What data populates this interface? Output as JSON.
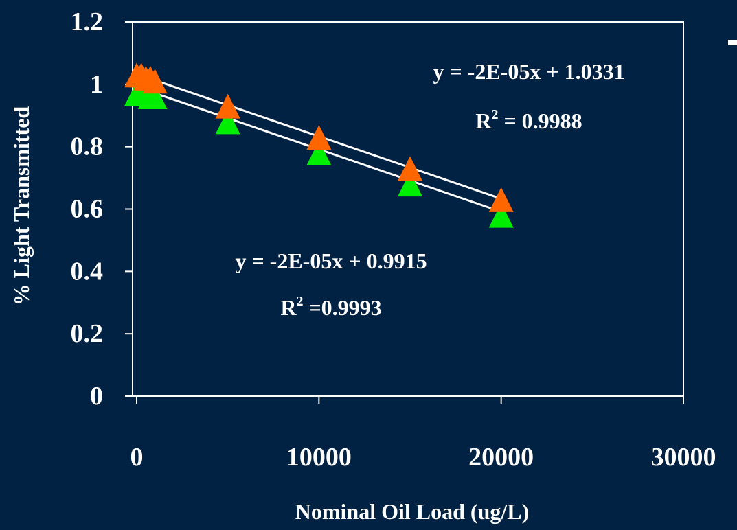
{
  "chart_data": {
    "type": "scatter",
    "xlabel": "Nominal Oil Load (ug/L)",
    "ylabel": "% Light Transmitted",
    "xlim": [
      0,
      30000
    ],
    "ylim": [
      0,
      1.2
    ],
    "x_ticks": [
      "0",
      "10000",
      "20000",
      "30000"
    ],
    "y_ticks": [
      "0",
      "0.2",
      "0.4",
      "0.6",
      "0.8",
      "1",
      "1.2"
    ],
    "grid": false,
    "legend": "none",
    "marker": "triangle",
    "colors": {
      "background": "#022244",
      "series_orange": "#ff6600",
      "series_green": "#00ee00",
      "trendline": "#ffffff",
      "text": "#ffffff"
    },
    "series": [
      {
        "color": "#ff6600",
        "points": [
          [
            0,
            1.03
          ],
          [
            250,
            1.03
          ],
          [
            500,
            1.02
          ],
          [
            750,
            1.02
          ],
          [
            1000,
            1.01
          ],
          [
            5000,
            0.93
          ],
          [
            10000,
            0.83
          ],
          [
            15000,
            0.73
          ],
          [
            20000,
            0.63
          ]
        ],
        "trendline": {
          "slope": -2e-05,
          "intercept": 1.0331,
          "x_range": [
            0,
            20000
          ]
        },
        "equation_line1": "y = -2E-05x + 1.0331",
        "r2_label": "R",
        "r2_sup": "2",
        "r2_rest": " = 0.9988"
      },
      {
        "color": "#00ee00",
        "points": [
          [
            0,
            0.97
          ],
          [
            250,
            0.97
          ],
          [
            500,
            0.97
          ],
          [
            750,
            0.96
          ],
          [
            1000,
            0.96
          ],
          [
            5000,
            0.88
          ],
          [
            10000,
            0.78
          ],
          [
            15000,
            0.68
          ],
          [
            20000,
            0.58
          ]
        ],
        "trendline": {
          "slope": -2e-05,
          "intercept": 0.9915,
          "x_range": [
            0,
            20000
          ]
        },
        "equation_line1": "y = -2E-05x + 0.9915",
        "r2_label": "R",
        "r2_sup": "2",
        "r2_rest": " =0.9993"
      }
    ]
  }
}
